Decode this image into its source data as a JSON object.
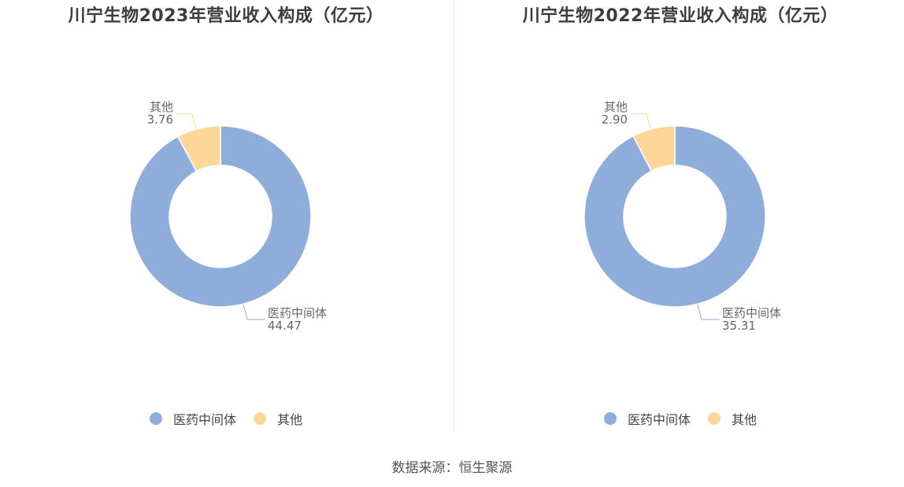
{
  "colors": {
    "pharma": "#8fadda",
    "other": "#fdd79a"
  },
  "chart_data": [
    {
      "type": "pie",
      "title": "川宁生物2023年营业收入构成（亿元）",
      "categories": [
        "医药中间体",
        "其他"
      ],
      "values": [
        44.47,
        3.76
      ],
      "labels": [
        "44.47",
        "3.76"
      ],
      "legend": "bottom"
    },
    {
      "type": "pie",
      "title": "川宁生物2022年营业收入构成（亿元）",
      "categories": [
        "医药中间体",
        "其他"
      ],
      "values": [
        35.31,
        2.9
      ],
      "labels": [
        "35.31",
        "2.90"
      ],
      "legend": "bottom"
    }
  ],
  "footer": {
    "source": "数据来源：恒生聚源"
  }
}
